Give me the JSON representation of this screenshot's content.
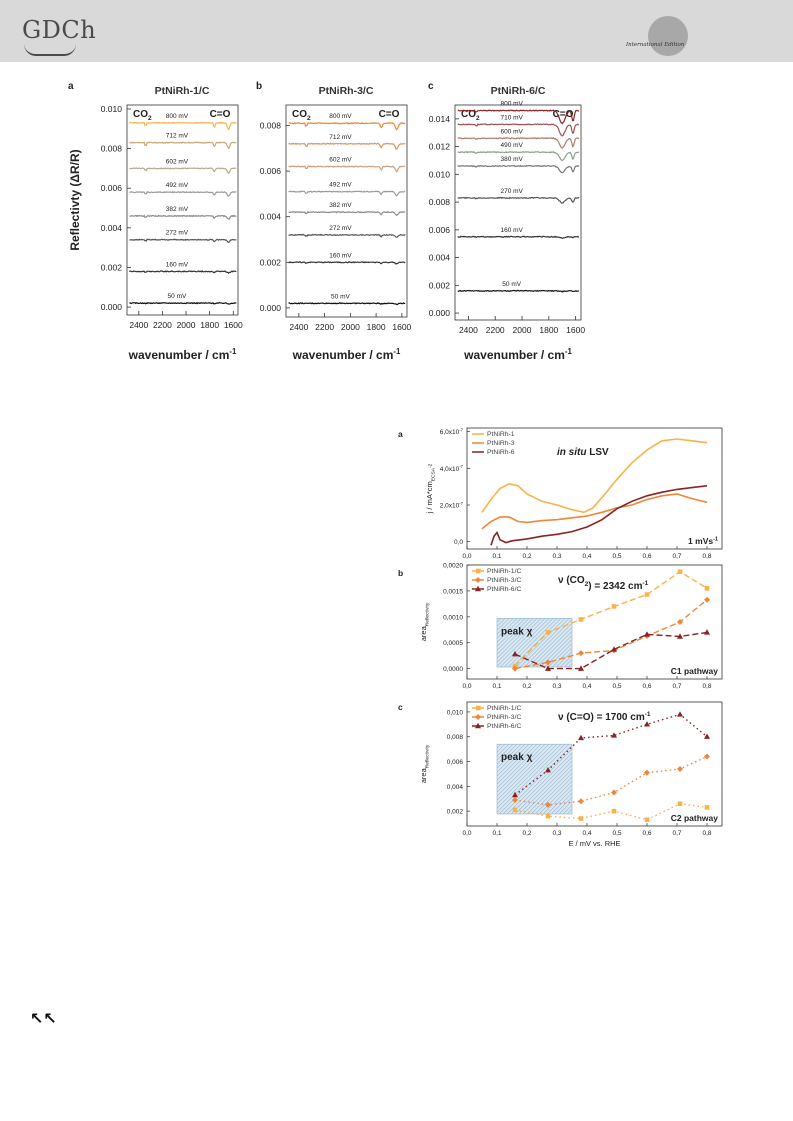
{
  "header": {
    "logo": "GDCh",
    "edition": "International Edition"
  },
  "figure_top": {
    "ylabel": "Reflectivty (ΔR/R)",
    "xlabel": "wavenumber / cm",
    "xlabel_sup": "-1",
    "band_labels": [
      "CO",
      "C=O"
    ],
    "x_ticks": [
      "2400",
      "2200",
      "2000",
      "1800",
      "1600"
    ],
    "panels": [
      {
        "letter": "a",
        "title": "PtNiRh-1/C",
        "y_ticks": [
          "0.000",
          "0.002",
          "0.004",
          "0.006",
          "0.008",
          "0.010"
        ],
        "potentials": [
          "800 mV",
          "712 mV",
          "602 mV",
          "492 mV",
          "382 mV",
          "272 mV",
          "160 mV",
          "50 mV"
        ]
      },
      {
        "letter": "b",
        "title": "PtNiRh-3/C",
        "y_ticks": [
          "0.000",
          "0.002",
          "0.004",
          "0.006",
          "0.008"
        ],
        "potentials": [
          "800 mV",
          "712 mV",
          "602 mV",
          "492 mV",
          "382 mV",
          "272 mV",
          "160 mV",
          "50 mV"
        ]
      },
      {
        "letter": "c",
        "title": "PtNiRh-6/C",
        "y_ticks": [
          "0.000",
          "0.002",
          "0.004",
          "0.006",
          "0.008",
          "0.010",
          "0.012",
          "0.014"
        ],
        "potentials": [
          "800 mV",
          "710 mV",
          "600 mV",
          "490 mV",
          "380 mV",
          "270 mV",
          "160 mV",
          "50 mV"
        ]
      }
    ]
  },
  "chart_data": [
    {
      "type": "line",
      "panel": "a",
      "title": "in situ LSV",
      "ylabel": "j / mA*cm",
      "ylabel_sub": "ECSA",
      "ylabel_sup": "-2",
      "annotation": "1 mVs",
      "annotation_sup": "-1",
      "x_ticks": [
        "0,0",
        "0,1",
        "0,2",
        "0,3",
        "0,4",
        "0,5",
        "0,6",
        "0,7",
        "0,8"
      ],
      "y_ticks": [
        "0,0",
        "2,0x10",
        "4,0x10",
        "6,0x10"
      ],
      "y_tick_sup": "-7",
      "xlim": [
        0.0,
        0.85
      ],
      "ylim": [
        -4e-08,
        6.2e-07
      ],
      "series": [
        {
          "name": "PtNiRh-1",
          "color": "#f7b24a",
          "x": [
            0.05,
            0.08,
            0.11,
            0.14,
            0.17,
            0.2,
            0.25,
            0.3,
            0.35,
            0.39,
            0.42,
            0.46,
            0.5,
            0.55,
            0.6,
            0.65,
            0.7,
            0.75,
            0.8
          ],
          "y": [
            1.6e-07,
            2.3e-07,
            2.9e-07,
            3.15e-07,
            3.05e-07,
            2.6e-07,
            2.2e-07,
            2e-07,
            1.75e-07,
            1.6e-07,
            1.85e-07,
            2.6e-07,
            3.4e-07,
            4.3e-07,
            5e-07,
            5.5e-07,
            5.6e-07,
            5.5e-07,
            5.4e-07
          ]
        },
        {
          "name": "PtNiRh-3",
          "color": "#ef8638",
          "x": [
            0.05,
            0.08,
            0.11,
            0.14,
            0.17,
            0.2,
            0.25,
            0.3,
            0.35,
            0.4,
            0.45,
            0.5,
            0.55,
            0.6,
            0.65,
            0.7,
            0.75,
            0.8
          ],
          "y": [
            7e-08,
            1.1e-07,
            1.35e-07,
            1.35e-07,
            1.1e-07,
            1.05e-07,
            1.15e-07,
            1.2e-07,
            1.3e-07,
            1.4e-07,
            1.6e-07,
            1.85e-07,
            2e-07,
            2.3e-07,
            2.5e-07,
            2.6e-07,
            2.35e-07,
            2.15e-07
          ]
        },
        {
          "name": "PtNiRh-6",
          "color": "#8a2323",
          "x": [
            0.08,
            0.09,
            0.1,
            0.11,
            0.13,
            0.15,
            0.2,
            0.25,
            0.3,
            0.35,
            0.4,
            0.45,
            0.5,
            0.55,
            0.6,
            0.65,
            0.7,
            0.75,
            0.8
          ],
          "y": [
            -2e-08,
            3e-08,
            5e-08,
            1e-08,
            -5e-09,
            5e-09,
            1.5e-08,
            3e-08,
            4e-08,
            5.5e-08,
            8e-08,
            1.2e-07,
            1.8e-07,
            2.2e-07,
            2.5e-07,
            2.7e-07,
            2.85e-07,
            2.95e-07,
            3.05e-07
          ]
        }
      ]
    },
    {
      "type": "line",
      "panel": "b",
      "title": "ν (CO",
      "title_sub": "2",
      "title_rest": ") = 2342 cm",
      "title_sup": "-1",
      "ylabel": "area",
      "ylabel_sub": "Reflectivity",
      "annotation": "C1 pathway",
      "box_label": "peak χ",
      "x_ticks": [
        "0,0",
        "0,1",
        "0,2",
        "0,3",
        "0,4",
        "0,5",
        "0,6",
        "0,7",
        "0,8"
      ],
      "y_ticks": [
        "0,0000",
        "0,0005",
        "0,0010",
        "0,0015",
        "0,0020"
      ],
      "xlim": [
        0.0,
        0.85
      ],
      "ylim": [
        -0.0002,
        0.002
      ],
      "series": [
        {
          "name": "PtNiRh-1/C",
          "color": "#f7b24a",
          "marker": "square",
          "x": [
            0.16,
            0.27,
            0.38,
            0.49,
            0.6,
            0.71,
            0.8
          ],
          "y": [
            5e-05,
            0.0007,
            0.00095,
            0.0012,
            0.00143,
            0.00187,
            0.00155
          ]
        },
        {
          "name": "PtNiRh-3/C",
          "color": "#ef8638",
          "marker": "diamond",
          "x": [
            0.16,
            0.27,
            0.38,
            0.49,
            0.6,
            0.71,
            0.8
          ],
          "y": [
            0.0,
            0.00012,
            0.0003,
            0.00035,
            0.00063,
            0.0009,
            0.00133
          ]
        },
        {
          "name": "PtNiRh-6/C",
          "color": "#8a2323",
          "marker": "triangle",
          "x": [
            0.16,
            0.27,
            0.38,
            0.49,
            0.6,
            0.71,
            0.8
          ],
          "y": [
            0.00028,
            0.0,
            0.0,
            0.00037,
            0.00066,
            0.00062,
            0.0007
          ]
        }
      ]
    },
    {
      "type": "line",
      "panel": "c",
      "title": "ν (C=O) = 1700 cm",
      "title_sup": "-1",
      "ylabel": "area",
      "ylabel_sub": "Reflectivity",
      "annotation": "C2 pathway",
      "box_label": "peak χ",
      "x_ticks": [
        "0,0",
        "0,1",
        "0,2",
        "0,3",
        "0,4",
        "0,5",
        "0,6",
        "0,7",
        "0,8"
      ],
      "y_ticks": [
        "0,002",
        "0,004",
        "0,006",
        "0,008",
        "0,010"
      ],
      "xlim": [
        0.0,
        0.85
      ],
      "ylim": [
        0.0008,
        0.0108
      ],
      "series": [
        {
          "name": "PtNiRh-1/C",
          "color": "#f7b24a",
          "marker": "square",
          "x": [
            0.16,
            0.27,
            0.38,
            0.49,
            0.6,
            0.71,
            0.8
          ],
          "y": [
            0.0021,
            0.0016,
            0.0014,
            0.002,
            0.0013,
            0.0026,
            0.0023
          ]
        },
        {
          "name": "PtNiRh-3/C",
          "color": "#ef8638",
          "marker": "diamond",
          "x": [
            0.16,
            0.27,
            0.38,
            0.49,
            0.6,
            0.71,
            0.8
          ],
          "y": [
            0.0029,
            0.0025,
            0.0028,
            0.0035,
            0.0051,
            0.0054,
            0.0064
          ]
        },
        {
          "name": "PtNiRh-6/C",
          "color": "#8a2323",
          "marker": "triangle",
          "x": [
            0.16,
            0.27,
            0.38,
            0.49,
            0.6,
            0.71,
            0.8
          ],
          "y": [
            0.0033,
            0.0053,
            0.0079,
            0.0081,
            0.009,
            0.0098,
            0.008
          ]
        }
      ]
    }
  ],
  "shared_xlabel": "E / mV vs. RHE",
  "corner_mark": "↖↖"
}
